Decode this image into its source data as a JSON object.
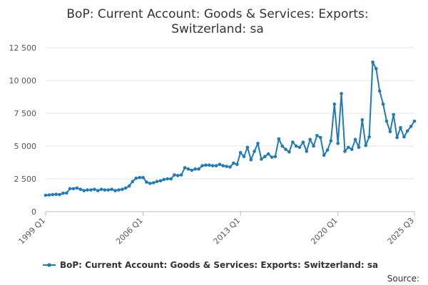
{
  "chart_data": {
    "type": "line",
    "title_lines": [
      "BoP: Current Account: Goods & Services: Exports:",
      "Switzerland: sa"
    ],
    "x_tick_labels": [
      "1999 Q1",
      "2006 Q1",
      "2013 Q1",
      "2020 Q1",
      "2025 Q3"
    ],
    "y_tick_labels": [
      "0",
      "2 500",
      "5 000",
      "7 500",
      "10 000",
      "12 500"
    ],
    "ylim": [
      0,
      12500
    ],
    "grid": "horizontal",
    "legend_position": "bottom",
    "series": [
      {
        "name": "BoP: Current Account: Goods & Services: Exports: Switzerland: sa",
        "color": "#1f7ab7",
        "x": [
          "1999 Q1",
          "1999 Q2",
          "1999 Q3",
          "1999 Q4",
          "2000 Q1",
          "2000 Q2",
          "2000 Q3",
          "2000 Q4",
          "2001 Q1",
          "2001 Q2",
          "2001 Q3",
          "2001 Q4",
          "2002 Q1",
          "2002 Q2",
          "2002 Q3",
          "2002 Q4",
          "2003 Q1",
          "2003 Q2",
          "2003 Q3",
          "2003 Q4",
          "2004 Q1",
          "2004 Q2",
          "2004 Q3",
          "2004 Q4",
          "2005 Q1",
          "2005 Q2",
          "2005 Q3",
          "2005 Q4",
          "2006 Q1",
          "2006 Q2",
          "2006 Q3",
          "2006 Q4",
          "2007 Q1",
          "2007 Q2",
          "2007 Q3",
          "2007 Q4",
          "2008 Q1",
          "2008 Q2",
          "2008 Q3",
          "2008 Q4",
          "2009 Q1",
          "2009 Q2",
          "2009 Q3",
          "2009 Q4",
          "2010 Q1",
          "2010 Q2",
          "2010 Q3",
          "2010 Q4",
          "2011 Q1",
          "2011 Q2",
          "2011 Q3",
          "2011 Q4",
          "2012 Q1",
          "2012 Q2",
          "2012 Q3",
          "2012 Q4",
          "2013 Q1",
          "2013 Q2",
          "2013 Q3",
          "2013 Q4",
          "2014 Q1",
          "2014 Q2",
          "2014 Q3",
          "2014 Q4",
          "2015 Q1",
          "2015 Q2",
          "2015 Q3",
          "2015 Q4",
          "2016 Q1",
          "2016 Q2",
          "2016 Q3",
          "2016 Q4",
          "2017 Q1",
          "2017 Q2",
          "2017 Q3",
          "2017 Q4",
          "2018 Q1",
          "2018 Q2",
          "2018 Q3",
          "2018 Q4",
          "2019 Q1",
          "2019 Q2",
          "2019 Q3",
          "2019 Q4",
          "2020 Q1",
          "2020 Q2",
          "2020 Q3",
          "2020 Q4",
          "2021 Q1",
          "2021 Q2",
          "2021 Q3",
          "2021 Q4",
          "2022 Q1",
          "2022 Q2",
          "2022 Q3",
          "2022 Q4",
          "2023 Q1",
          "2023 Q2",
          "2023 Q3",
          "2023 Q4",
          "2024 Q1",
          "2024 Q2",
          "2024 Q3",
          "2024 Q4",
          "2025 Q1",
          "2025 Q2",
          "2025 Q3"
        ],
        "values": [
          1250,
          1270,
          1300,
          1320,
          1300,
          1400,
          1420,
          1750,
          1750,
          1800,
          1700,
          1600,
          1650,
          1650,
          1700,
          1600,
          1700,
          1650,
          1650,
          1700,
          1600,
          1650,
          1700,
          1800,
          1950,
          2300,
          2550,
          2600,
          2600,
          2250,
          2150,
          2200,
          2300,
          2350,
          2450,
          2500,
          2500,
          2800,
          2750,
          2800,
          3350,
          3250,
          3150,
          3250,
          3250,
          3500,
          3550,
          3550,
          3500,
          3500,
          3600,
          3500,
          3450,
          3400,
          3700,
          3600,
          4500,
          4200,
          4900,
          3950,
          4600,
          5200,
          4000,
          4200,
          4400,
          4150,
          4200,
          5550,
          5000,
          4750,
          4550,
          5300,
          5000,
          4900,
          5300,
          4600,
          5500,
          5000,
          5800,
          5650,
          4300,
          4700,
          5400,
          8200,
          5200,
          9000,
          4600,
          4900,
          4750,
          5500,
          4900,
          7000,
          5050,
          5700,
          11400,
          10900,
          9200,
          8200,
          6900,
          6100,
          7400,
          5650,
          6400,
          5700,
          6150,
          6500,
          6900
        ]
      }
    ]
  },
  "legend": {
    "label": "BoP: Current Account: Goods & Services: Exports: Switzerland: sa"
  },
  "source": {
    "label": "Source:"
  }
}
